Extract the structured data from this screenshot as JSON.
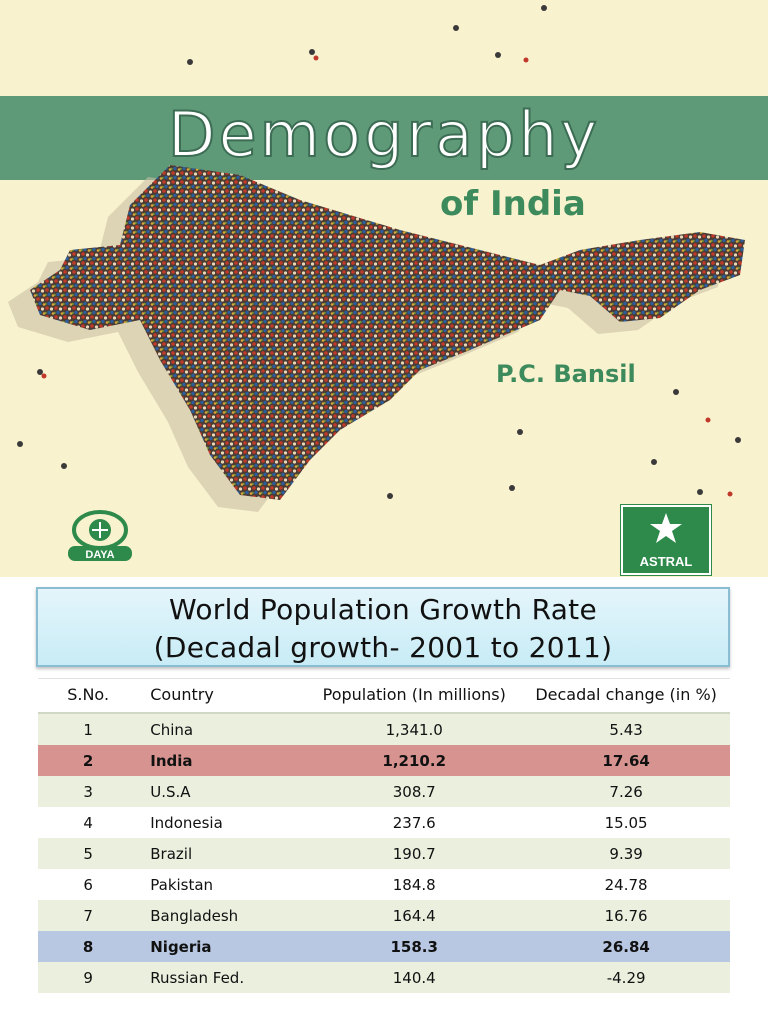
{
  "cover": {
    "title": "Demography",
    "subtitle": "of India",
    "author": "P.C. Bansil",
    "publisher_logo_left": "DAYA",
    "publisher_logo_right": "ASTRAL",
    "colors": {
      "band": "#5f9a78",
      "background": "#f9f2cf",
      "text_green": "#3d8a5c"
    }
  },
  "slide": {
    "title_line1": "World Population Growth Rate",
    "title_line2": "(Decadal growth- 2001 to 2011)",
    "columns": [
      "S.No.",
      "Country",
      "Population (In millions)",
      "Decadal change (in %)"
    ],
    "rows": [
      {
        "sno": "1",
        "country": "China",
        "population": "1,341.0",
        "change": "5.43",
        "highlight": "none"
      },
      {
        "sno": "2",
        "country": "India",
        "population": "1,210.2",
        "change": "17.64",
        "highlight": "red"
      },
      {
        "sno": "3",
        "country": "U.S.A",
        "population": "308.7",
        "change": "7.26",
        "highlight": "none"
      },
      {
        "sno": "4",
        "country": "Indonesia",
        "population": "237.6",
        "change": "15.05",
        "highlight": "none"
      },
      {
        "sno": "5",
        "country": "Brazil",
        "population": "190.7",
        "change": "9.39",
        "highlight": "none"
      },
      {
        "sno": "6",
        "country": "Pakistan",
        "population": "184.8",
        "change": "24.78",
        "highlight": "none"
      },
      {
        "sno": "7",
        "country": "Bangladesh",
        "population": "164.4",
        "change": "16.76",
        "highlight": "none"
      },
      {
        "sno": "8",
        "country": "Nigeria",
        "population": "158.3",
        "change": "26.84",
        "highlight": "blue"
      },
      {
        "sno": "9",
        "country": "Russian Fed.",
        "population": "140.4",
        "change": "-4.29",
        "highlight": "none"
      }
    ],
    "colors": {
      "row_alt": "#eaefde",
      "row_red": "#d79390",
      "row_blue": "#b8c8e2",
      "header_bg": "#d4effa"
    }
  }
}
